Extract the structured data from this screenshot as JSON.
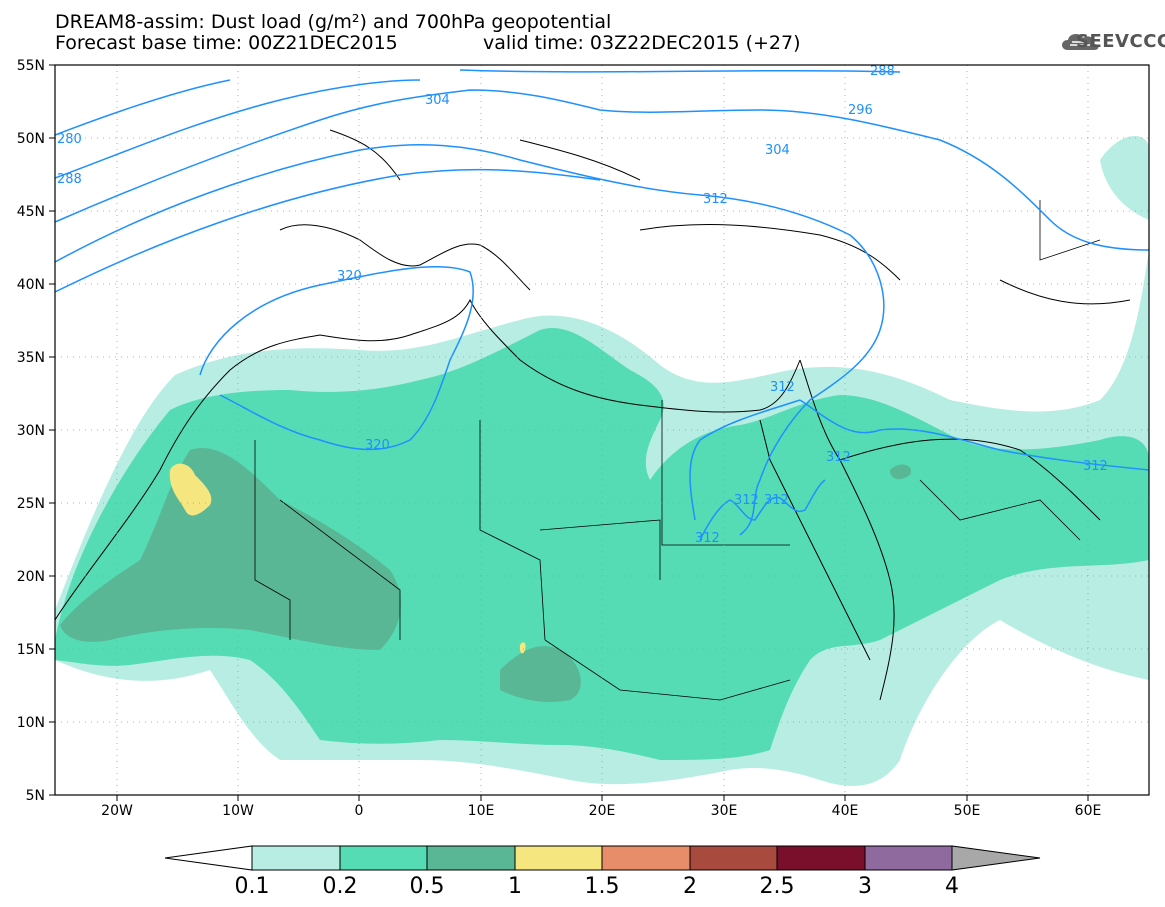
{
  "header": {
    "title_line1": "DREAM8-assim: Dust load (g/m²) and 700hPa geopotential",
    "title_line2_left": "Forecast base time: 00Z21DEC2015",
    "title_line2_right": "valid time: 03Z22DEC2015 (+27)",
    "logo_text": "SEEVCCC"
  },
  "map": {
    "lat_labels": [
      "55N",
      "50N",
      "45N",
      "40N",
      "35N",
      "30N",
      "25N",
      "20N",
      "15N",
      "10N",
      "5N"
    ],
    "lon_labels": [
      "20W",
      "10W",
      "0",
      "10E",
      "20E",
      "30E",
      "40E",
      "50E",
      "60E"
    ],
    "contour_labels": [
      {
        "text": "280"
      },
      {
        "text": "288"
      },
      {
        "text": "288"
      },
      {
        "text": "296"
      },
      {
        "text": "304"
      },
      {
        "text": "304"
      },
      {
        "text": "312"
      },
      {
        "text": "320"
      },
      {
        "text": "320"
      },
      {
        "text": "312"
      },
      {
        "text": "312"
      },
      {
        "text": "312"
      },
      {
        "text": "312"
      },
      {
        "text": "312"
      },
      {
        "text": "312"
      }
    ],
    "contour_color": "#1e90ff"
  },
  "colorbar": {
    "levels": [
      "0.1",
      "0.2",
      "0.5",
      "1",
      "1.5",
      "2",
      "2.5",
      "3",
      "4"
    ],
    "colors": [
      "#b8ede3",
      "#55dcb4",
      "#5ab796",
      "#f5e67f",
      "#e88d69",
      "#a94a3f",
      "#7a0f2b",
      "#8e6a9e"
    ],
    "lower_arrow_color": "#ffffff",
    "upper_arrow_color": "#a8a8a8"
  }
}
